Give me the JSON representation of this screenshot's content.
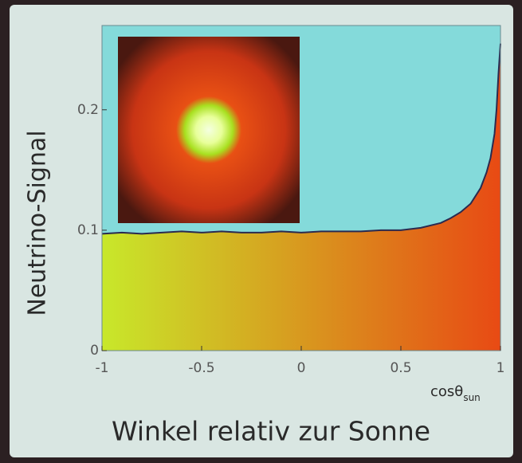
{
  "chart_data": {
    "type": "area",
    "title": "Winkel relativ zur Sonne",
    "y_label": "Neutrino-Signal",
    "x_label": "cosθ",
    "x_label_sub": "sun",
    "x": [
      -1,
      -0.9,
      -0.8,
      -0.7,
      -0.6,
      -0.5,
      -0.4,
      -0.3,
      -0.2,
      -0.1,
      0,
      0.1,
      0.2,
      0.3,
      0.4,
      0.5,
      0.6,
      0.7,
      0.75,
      0.8,
      0.85,
      0.9,
      0.93,
      0.95,
      0.97,
      0.98,
      0.99,
      1
    ],
    "values": [
      0.097,
      0.098,
      0.097,
      0.098,
      0.099,
      0.098,
      0.099,
      0.098,
      0.098,
      0.099,
      0.098,
      0.099,
      0.099,
      0.099,
      0.1,
      0.1,
      0.102,
      0.106,
      0.11,
      0.115,
      0.122,
      0.135,
      0.148,
      0.16,
      0.18,
      0.2,
      0.23,
      0.255
    ],
    "xlim": [
      -1,
      1
    ],
    "xticks": [
      -1,
      -0.5,
      0,
      0.5,
      1
    ],
    "ylim": [
      0,
      0.27
    ],
    "yticks": [
      0,
      0.1,
      0.2
    ],
    "grid": false,
    "color": "#2a2a50",
    "fill_colors": [
      "#c8e82a",
      "#e84a14"
    ],
    "background": "#84dada"
  }
}
